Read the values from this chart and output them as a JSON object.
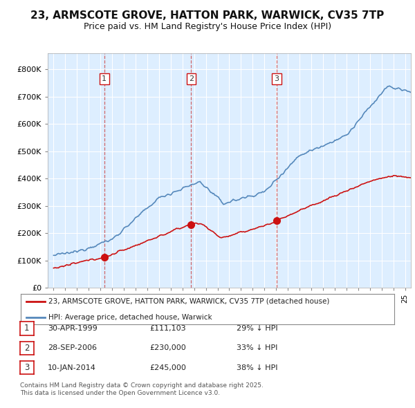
{
  "title": "23, ARMSCOTE GROVE, HATTON PARK, WARWICK, CV35 7TP",
  "subtitle": "Price paid vs. HM Land Registry's House Price Index (HPI)",
  "background_color": "#ffffff",
  "plot_bg_color": "#ddeeff",
  "grid_color": "#ffffff",
  "hpi_color": "#5588bb",
  "price_color": "#cc1111",
  "legend_line1": "23, ARMSCOTE GROVE, HATTON PARK, WARWICK, CV35 7TP (detached house)",
  "legend_line2": "HPI: Average price, detached house, Warwick",
  "footer_line1": "Contains HM Land Registry data © Crown copyright and database right 2025.",
  "footer_line2": "This data is licensed under the Open Government Licence v3.0.",
  "transactions": [
    {
      "num": 1,
      "date": "30-APR-1999",
      "price": "£111,103",
      "hpi": "29% ↓ HPI",
      "year": 1999.33
    },
    {
      "num": 2,
      "date": "28-SEP-2006",
      "price": "£230,000",
      "hpi": "33% ↓ HPI",
      "year": 2006.75
    },
    {
      "num": 3,
      "date": "10-JAN-2014",
      "price": "£245,000",
      "hpi": "38% ↓ HPI",
      "year": 2014.03
    }
  ],
  "transaction_prices": [
    111103,
    230000,
    245000
  ],
  "ylim": [
    0,
    860000
  ],
  "yticks": [
    0,
    100000,
    200000,
    300000,
    400000,
    500000,
    600000,
    700000,
    800000
  ],
  "xlim_start": 1995,
  "xlim_end": 2025.5
}
